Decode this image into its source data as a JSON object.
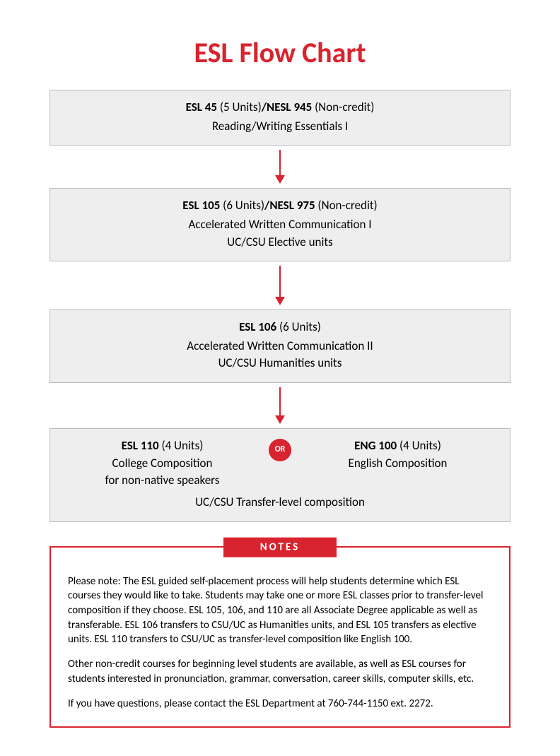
{
  "title": "ESL Flow Chart",
  "title_color": "#d9232e",
  "title_fontsize": 40,
  "body_fontsize": 17,
  "box_bg": "#eeeeee",
  "box_border": "#bbbbbb",
  "arrow_color": "#d9232e",
  "nodes": [
    {
      "code_a": "ESL 45",
      "units_a": " (5 Units)",
      "sep": "/",
      "code_b": "NESL 945",
      "units_b": " (Non-credit)",
      "subtitle": "Reading/Writing Essentials I",
      "extra": ""
    },
    {
      "code_a": "ESL 105",
      "units_a": " (6 Units)",
      "sep": "/",
      "code_b": "NESL 975",
      "units_b": " (Non-credit)",
      "subtitle": "Accelerated Written Communication I",
      "extra": "UC/CSU Elective units"
    },
    {
      "code_a": "ESL 106",
      "units_a": " (6 Units)",
      "sep": "",
      "code_b": "",
      "units_b": "",
      "subtitle": "Accelerated Written Communication II",
      "extra": "UC/CSU Humanities units"
    }
  ],
  "arrow_heights": [
    36,
    44,
    40
  ],
  "split": {
    "left": {
      "code": "ESL 110",
      "units": " (4 Units)",
      "desc1": "College Composition",
      "desc2": "for non-native speakers"
    },
    "right": {
      "code": "ENG 100",
      "units": " (4 Units)",
      "desc1": "English Composition",
      "desc2": ""
    },
    "or_label": "OR",
    "or_bg": "#d9232e",
    "or_fontsize": 12,
    "footer": "UC/CSU Transfer-level composition"
  },
  "notes": {
    "label": "NOTES",
    "label_bg": "#d9232e",
    "border_color": "#d9232e",
    "fontsize": 15,
    "paragraphs": [
      "Please note: The ESL guided self-placement process will help students determine which ESL courses they would like to take. Students may take one or more ESL classes prior to transfer-level composition if they choose. ESL 105, 106, and 110 are all Associate Degree applicable as well as transferable. ESL 106 transfers to CSU/UC as Humanities units, and ESL 105 transfers as elective units. ESL 110 transfers to CSU/UC as transfer-level composition like English 100.",
      "Other non-credit courses for beginning level students are available, as well as ESL courses for students interested in pronunciation, grammar, conversation, career skills, computer skills, etc.",
      "If you have questions, please contact the ESL Department at 760-744-1150 ext. 2272."
    ]
  }
}
